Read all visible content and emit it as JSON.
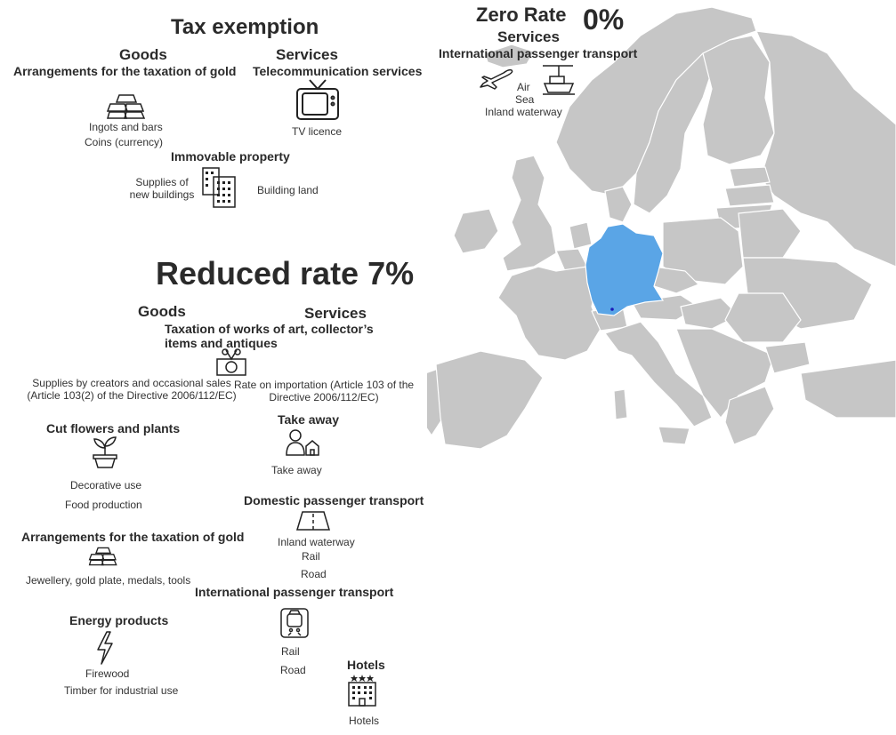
{
  "tax_exemption": {
    "title": "Tax exemption",
    "goods_header": "Goods",
    "goods_sub": "Arrangements for the taxation of gold",
    "gold_items": [
      "Ingots and bars",
      "Coins (currency)"
    ],
    "services_header": "Services",
    "services_sub": "Telecommunication services",
    "tv_item": "TV licence",
    "immovable_header": "Immovable property",
    "immovable_left": [
      "Supplies of",
      "new buildings"
    ],
    "immovable_right": "Building land",
    "icons": [
      "gold-bars-icon",
      "tv-icon",
      "buildings-icon"
    ]
  },
  "zero_rate": {
    "title": "Zero Rate",
    "rate": "0%",
    "services_header": "Services",
    "sub": "International passenger transport",
    "items": [
      "Air",
      "Sea",
      "Inland waterway"
    ],
    "icons": [
      "airplane-icon",
      "ship-icon"
    ]
  },
  "reduced_rate": {
    "title": "Reduced rate 7%",
    "goods_header": "Goods",
    "services_header": "Services",
    "art_sub": [
      "Taxation of works of art, collector’s",
      "items and antiques"
    ],
    "art_left": [
      "Supplies by creators and occasional sales",
      "(Article 103(2) of the Directive 2006/112/EC)"
    ],
    "art_right": [
      "Rate on importation (Article 103 of the",
      "Directive 2006/112/EC)"
    ],
    "flowers_header": "Cut flowers and plants",
    "flowers_items": [
      "Decorative use",
      "Food production"
    ],
    "gold_header": "Arrangements for the taxation of gold",
    "gold_item": "Jewellery, gold plate, medals, tools",
    "energy_header": "Energy products",
    "energy_items": [
      "Firewood",
      "Timber for industrial use"
    ],
    "takeaway_header": "Take away",
    "takeaway_item": "Take away",
    "domestic_header": "Domestic passenger transport",
    "domestic_items": [
      "Inland waterway",
      "Rail",
      "Road"
    ],
    "intl_header": "International passenger transport",
    "intl_items": [
      "Rail",
      "Road"
    ],
    "hotels_header": "Hotels",
    "hotels_item": "Hotels",
    "icons": [
      "art-icon",
      "plant-icon",
      "gold-bars-icon",
      "lightning-icon",
      "takeaway-icon",
      "road-icon",
      "train-icon",
      "hotel-icon"
    ]
  },
  "map": {
    "highlighted_country": "Germany",
    "highlight_color": "#5aa5e6",
    "land_color": "#c6c6c6",
    "border_color": "#ffffff"
  }
}
